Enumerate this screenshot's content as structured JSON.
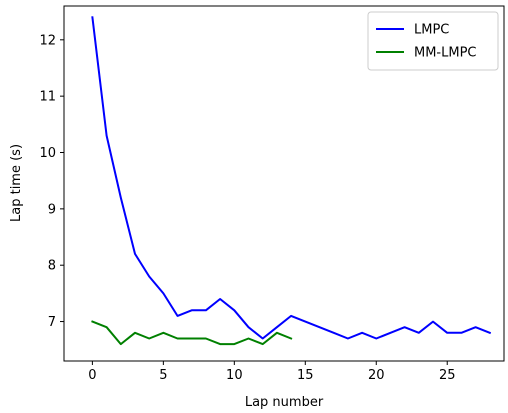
{
  "chart_data": {
    "type": "line",
    "xlabel": "Lap number",
    "ylabel": "Lap time (s)",
    "xlim": [
      -2,
      29
    ],
    "ylim": [
      6.3,
      12.6
    ],
    "xticks": [
      0,
      5,
      10,
      15,
      20,
      25
    ],
    "xtick_labels": [
      "0",
      "5",
      "10",
      "15",
      "20",
      "25"
    ],
    "yticks": [
      7,
      8,
      9,
      10,
      11,
      12
    ],
    "ytick_labels": [
      "7",
      "8",
      "9",
      "10",
      "11",
      "12"
    ],
    "grid": false,
    "legend_position": "top-right",
    "series": [
      {
        "name": "LMPC",
        "color": "#0000ff",
        "x": [
          0,
          1,
          2,
          3,
          4,
          5,
          6,
          7,
          8,
          9,
          10,
          11,
          12,
          13,
          14,
          15,
          16,
          17,
          18,
          19,
          20,
          21,
          22,
          23,
          24,
          25,
          26,
          27,
          28
        ],
        "y": [
          12.4,
          10.3,
          9.2,
          8.2,
          7.8,
          7.5,
          7.1,
          7.2,
          7.2,
          7.4,
          7.2,
          6.9,
          6.7,
          6.9,
          7.1,
          7.0,
          6.9,
          6.8,
          6.7,
          6.8,
          6.7,
          6.8,
          6.9,
          6.8,
          7.0,
          6.8,
          6.8,
          6.9,
          6.8
        ]
      },
      {
        "name": "MM-LMPC",
        "color": "#008000",
        "x": [
          0,
          1,
          2,
          3,
          4,
          5,
          6,
          7,
          8,
          9,
          10,
          11,
          12,
          13,
          14
        ],
        "y": [
          7.0,
          6.9,
          6.6,
          6.8,
          6.7,
          6.8,
          6.7,
          6.7,
          6.7,
          6.6,
          6.6,
          6.7,
          6.6,
          6.8,
          6.7
        ]
      }
    ]
  }
}
